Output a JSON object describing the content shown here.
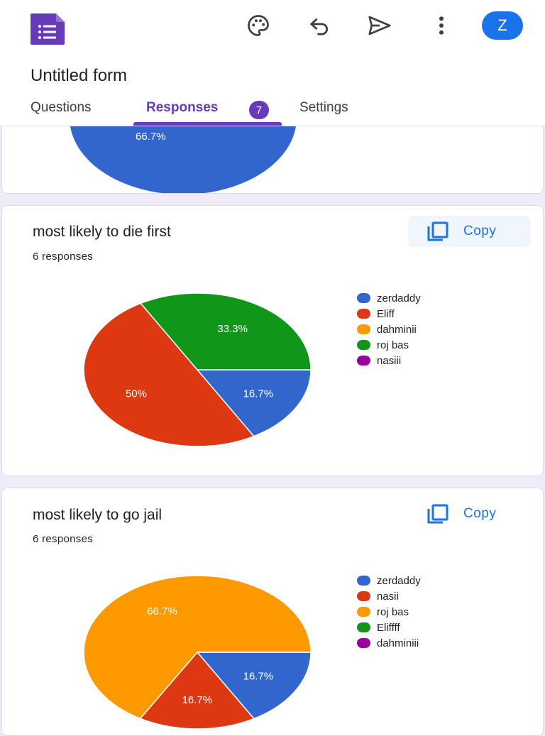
{
  "header": {
    "app_icon": "google-forms-icon",
    "icons": [
      "palette-icon",
      "undo-icon",
      "send-icon",
      "more-vert-icon"
    ],
    "avatar_letter": "Z",
    "form_title": "Untitled form"
  },
  "tabs": [
    {
      "label": "Questions",
      "active": false
    },
    {
      "label": "Responses",
      "active": true,
      "badge": "7"
    },
    {
      "label": "Settings",
      "active": false
    }
  ],
  "colors": {
    "accent": "#673ab7",
    "blue": "#3366cc",
    "red": "#dc3912",
    "orange": "#ff9900",
    "green": "#109618",
    "purple": "#990099",
    "link": "#1a73e8"
  },
  "partial_card": {
    "visible_label": "66.7%"
  },
  "cards": [
    {
      "title": "most likely to die first",
      "responses": "6 responses",
      "copy_label": "Copy"
    },
    {
      "title": "most likely to go jail",
      "responses": "6 responses",
      "copy_label": "Copy"
    }
  ],
  "chart_data": [
    {
      "type": "pie",
      "legend_position": "right",
      "categories": [
        "zerdaddy",
        "Eliff",
        "dahminii",
        "roj bas",
        "nasiii"
      ],
      "values": [
        16.7,
        50,
        0,
        33.3,
        0
      ],
      "labels": [
        "16.7%",
        "50%",
        "",
        "33.3%",
        ""
      ],
      "colors": [
        "#3366cc",
        "#dc3912",
        "#ff9900",
        "#109618",
        "#990099"
      ]
    },
    {
      "type": "pie",
      "legend_position": "right",
      "categories": [
        "zerdaddy",
        "nasii",
        "roj bas",
        "Eliffff",
        "dahminiii"
      ],
      "values": [
        16.7,
        16.7,
        66.7,
        0,
        0
      ],
      "labels": [
        "16.7%",
        "16.7%",
        "66.7%",
        "",
        ""
      ],
      "colors": [
        "#3366cc",
        "#dc3912",
        "#ff9900",
        "#109618",
        "#990099"
      ]
    }
  ]
}
